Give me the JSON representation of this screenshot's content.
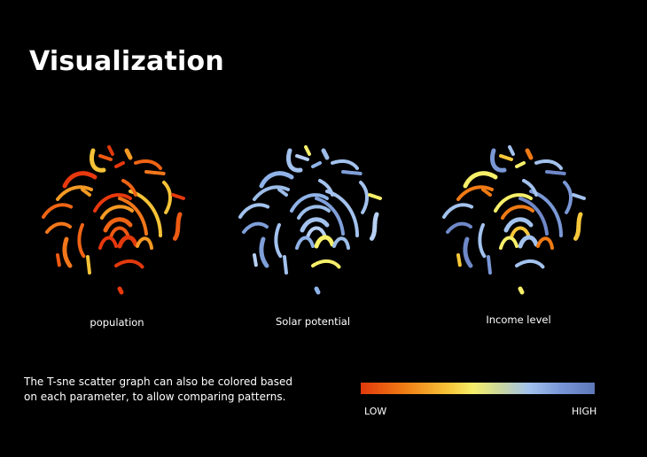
{
  "title": "Visualization",
  "panels": [
    {
      "caption": "population",
      "variant": "population"
    },
    {
      "caption": "Solar potential",
      "variant": "solar"
    },
    {
      "caption": "Income level",
      "variant": "income"
    }
  ],
  "description": "The T-sne scatter graph can also be colored based on each parameter, to allow comparing patterns.",
  "legend": {
    "low_label": "LOW",
    "high_label": "HIGH",
    "colors": [
      "#e2390c",
      "#f07a14",
      "#f7c73a",
      "#f6ef6a",
      "#a3c2ee",
      "#7795d6",
      "#5e78b8"
    ]
  }
}
